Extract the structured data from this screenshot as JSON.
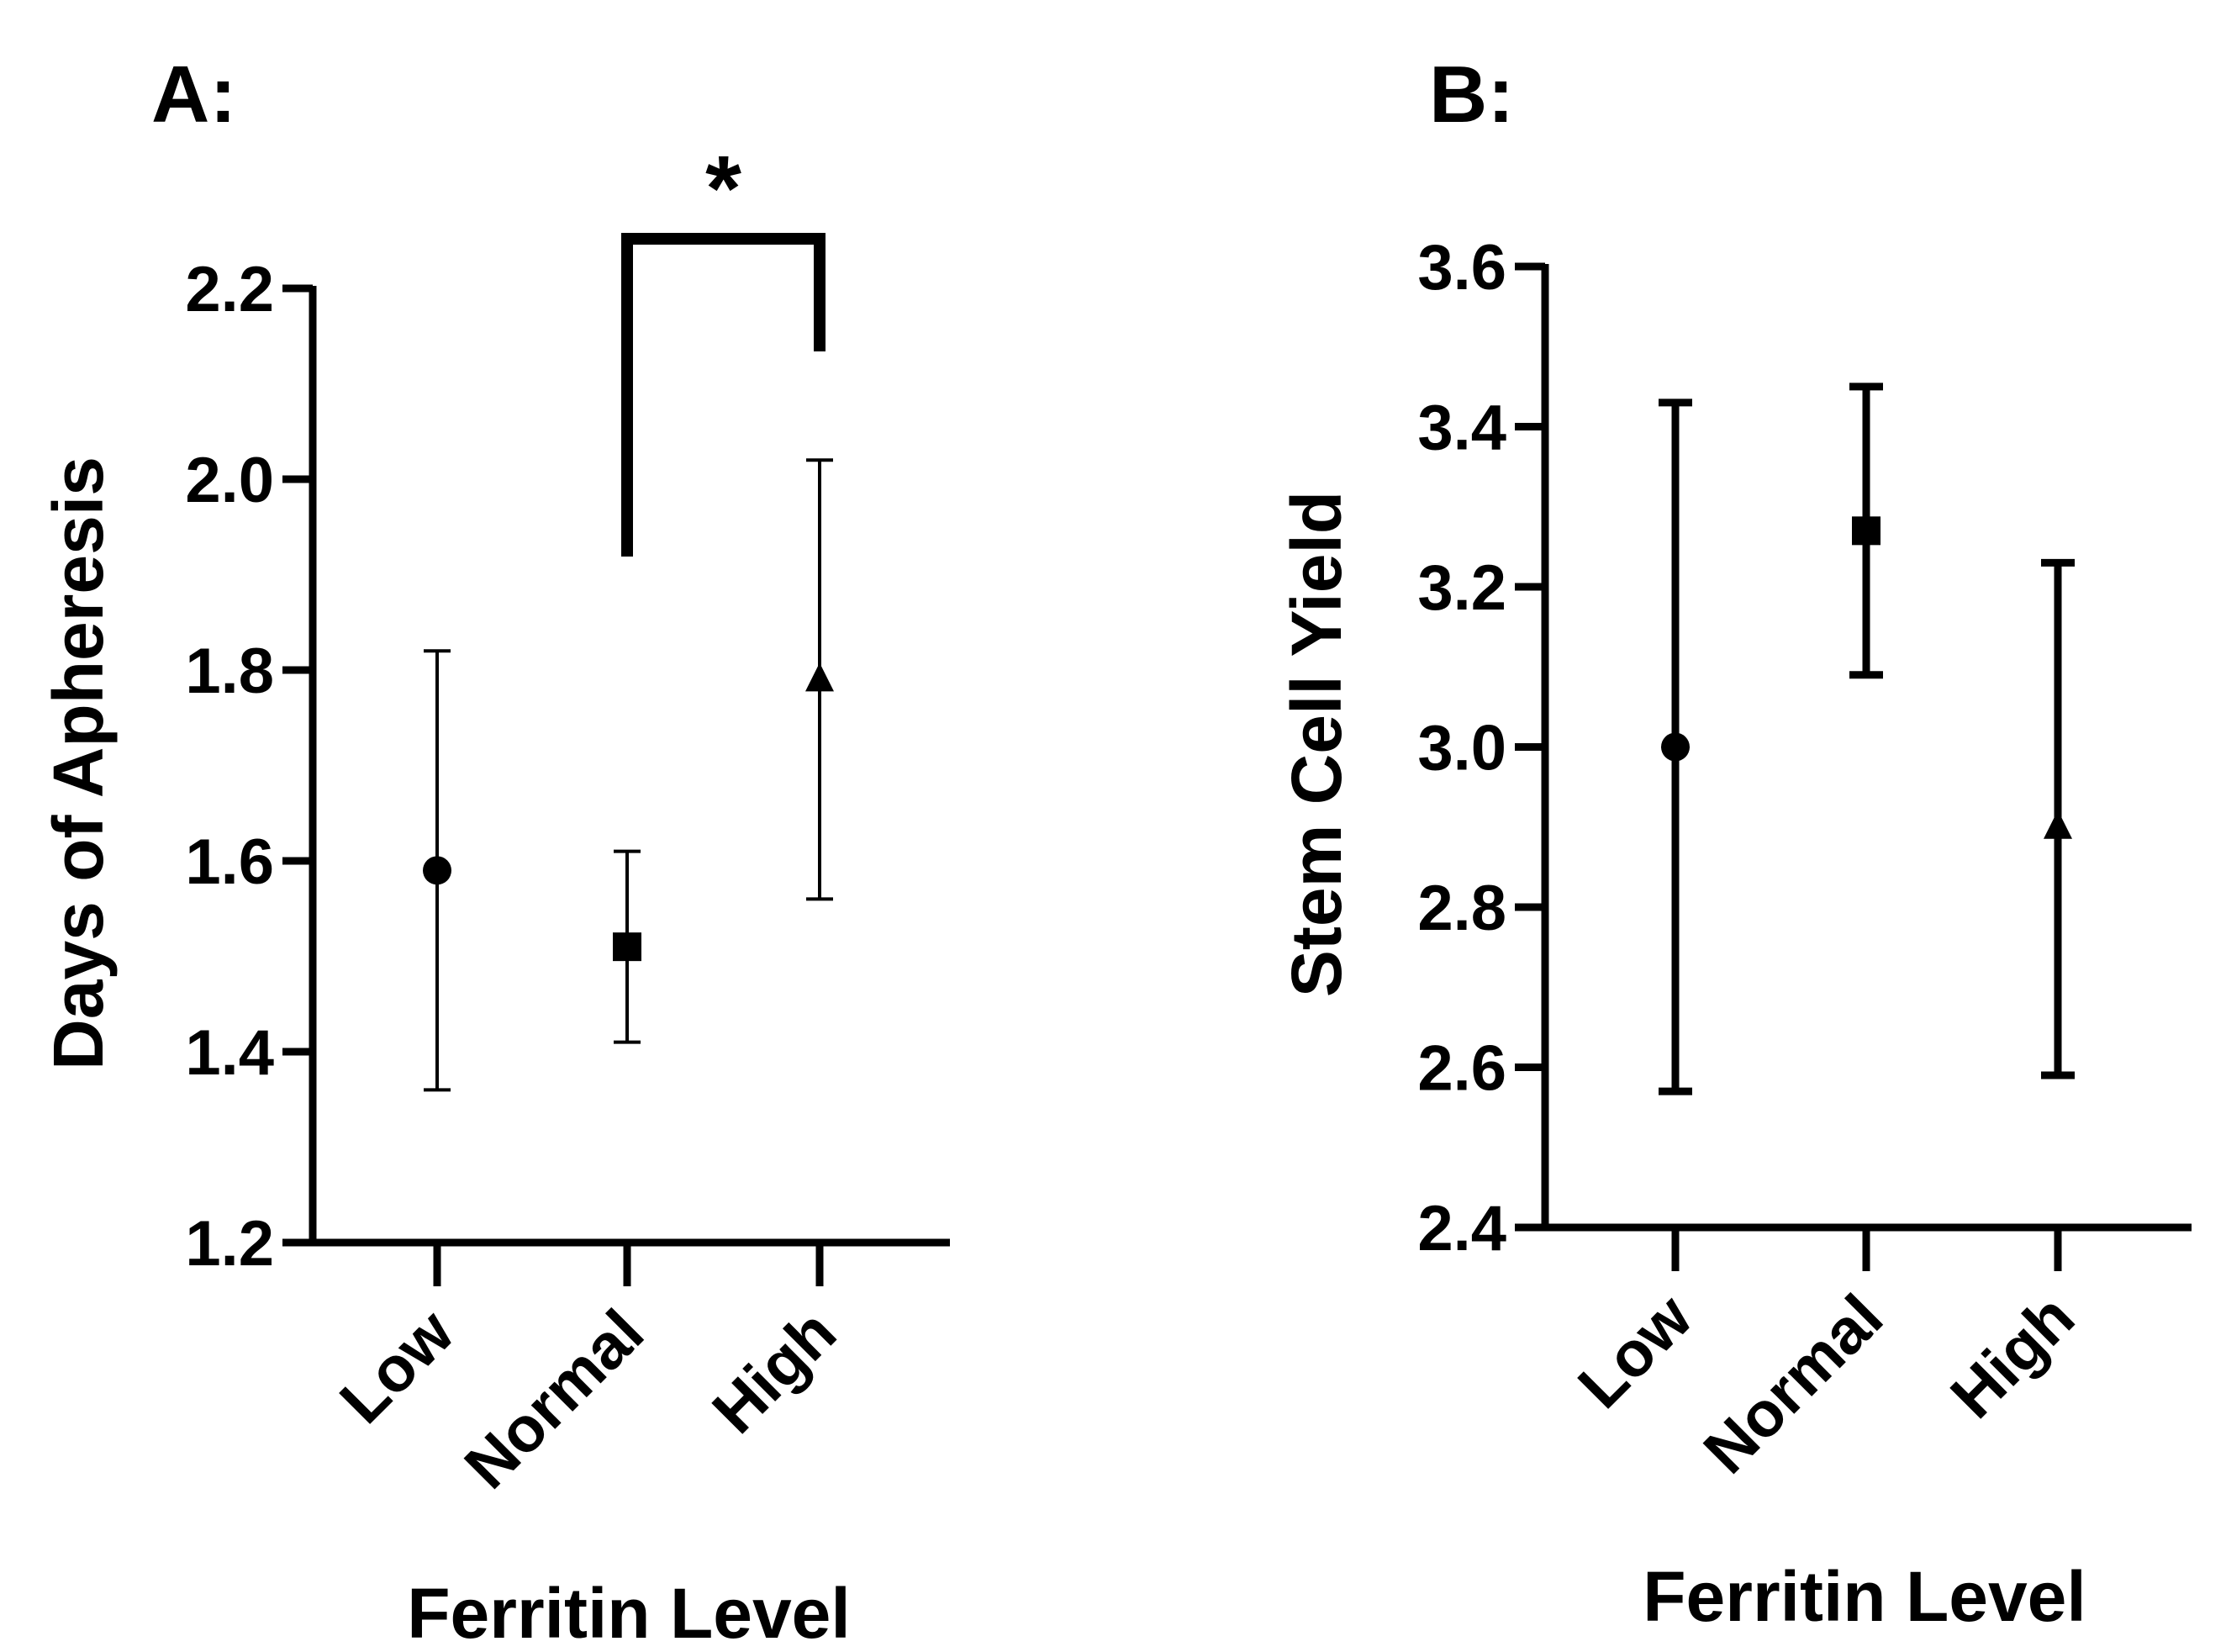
{
  "chart_data": [
    {
      "panel": "A:",
      "type": "scatter",
      "subtype": "mean-with-error-bars",
      "xlabel": "Ferritin Level",
      "ylabel": "Days of Apheresis",
      "ylim": [
        1.2,
        2.2
      ],
      "yticks": [
        "1.2",
        "1.4",
        "1.6",
        "1.8",
        "2.0",
        "2.2"
      ],
      "categories": [
        "Low",
        "Normal",
        "High"
      ],
      "markers": [
        "circle",
        "square",
        "triangle"
      ],
      "values": [
        1.59,
        1.51,
        1.79
      ],
      "error_low": [
        1.36,
        1.41,
        1.56
      ],
      "error_high": [
        1.82,
        1.61,
        2.02
      ],
      "significance": {
        "from": "Normal",
        "to": "High",
        "label": "*"
      }
    },
    {
      "panel": "B:",
      "type": "scatter",
      "subtype": "mean-with-error-bars",
      "xlabel": "Ferritin Level",
      "ylabel": "Stem Cell Yield",
      "ylim": [
        2.4,
        3.6
      ],
      "yticks": [
        "2.4",
        "2.6",
        "2.8",
        "3.0",
        "3.2",
        "3.4",
        "3.6"
      ],
      "categories": [
        "Low",
        "Normal",
        "High"
      ],
      "markers": [
        "circle",
        "square",
        "triangle"
      ],
      "values": [
        3.0,
        3.27,
        2.9
      ],
      "error_low": [
        2.57,
        3.09,
        2.59
      ],
      "error_high": [
        3.43,
        3.45,
        3.23
      ]
    }
  ]
}
